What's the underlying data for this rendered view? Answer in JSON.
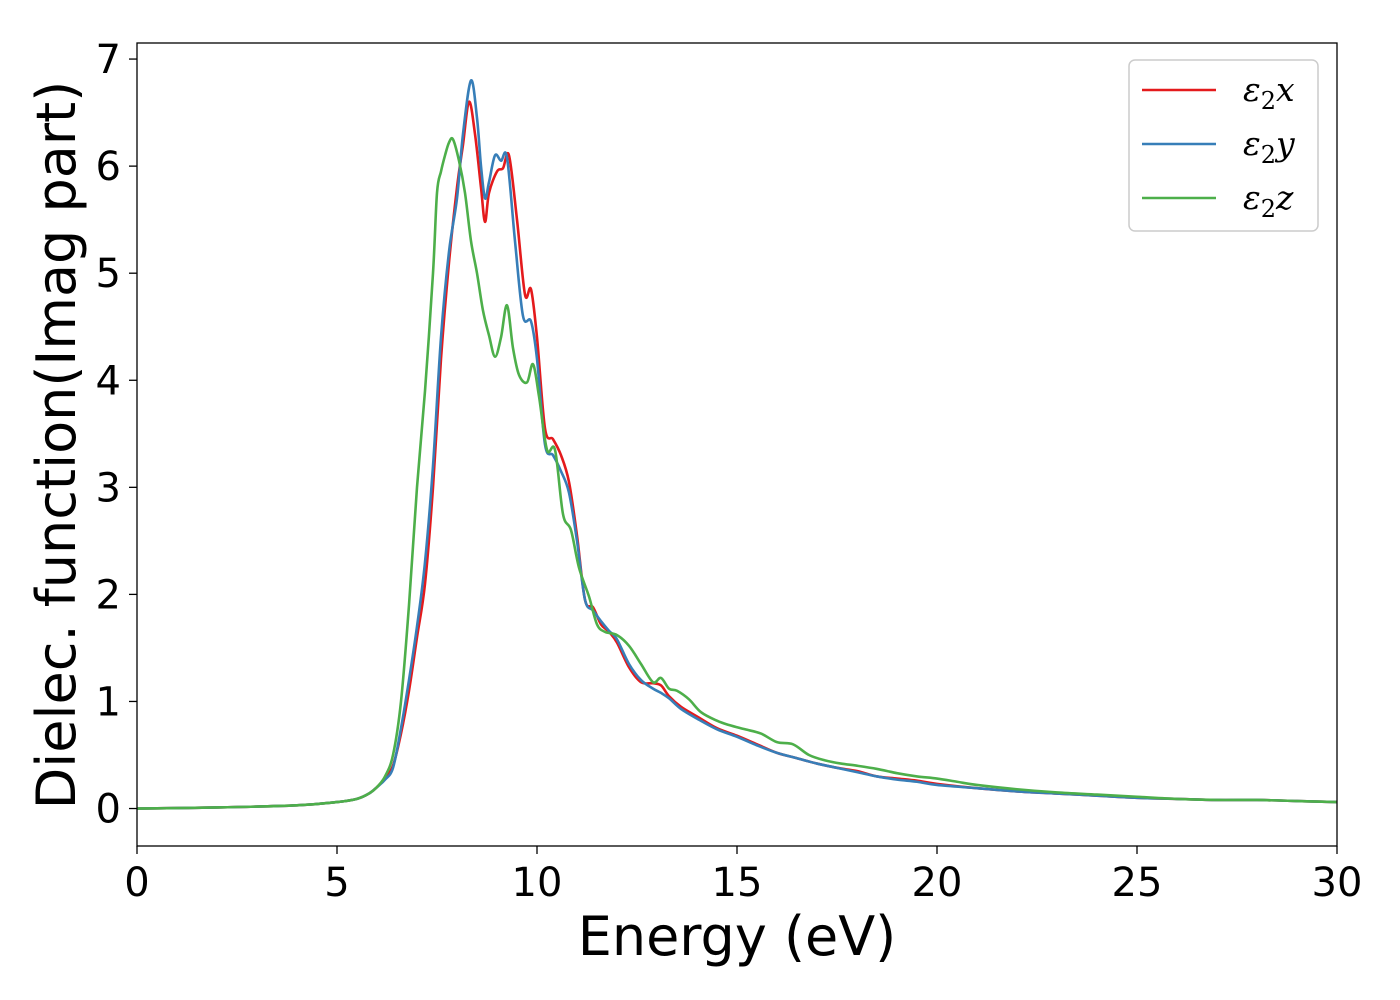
{
  "chart_data": {
    "type": "line",
    "xlabel": "Energy (eV)",
    "ylabel": "Dielec. function(Imag part)",
    "xlim": [
      0,
      30
    ],
    "ylim": [
      -0.35,
      7.15
    ],
    "xticks": [
      0,
      5,
      10,
      15,
      20,
      25,
      30
    ],
    "yticks": [
      0,
      1,
      2,
      3,
      4,
      5,
      6,
      7
    ],
    "grid": false,
    "legend": "top-right",
    "series": [
      {
        "name": "ε",
        "sub": "2",
        "suffix": "x",
        "color": "#e41a1c",
        "x": [
          0,
          2,
          4,
          5,
          5.5,
          5.8,
          6.0,
          6.2,
          6.4,
          6.6,
          6.8,
          7.0,
          7.2,
          7.4,
          7.6,
          7.8,
          8.0,
          8.15,
          8.3,
          8.45,
          8.6,
          8.7,
          8.8,
          9.0,
          9.15,
          9.3,
          9.5,
          9.7,
          9.85,
          10.0,
          10.2,
          10.4,
          10.6,
          10.8,
          11.0,
          11.2,
          11.4,
          11.6,
          11.8,
          12.0,
          12.3,
          12.6,
          12.9,
          13.1,
          13.3,
          13.6,
          14.0,
          14.5,
          15.0,
          15.5,
          16.0,
          16.5,
          17.0,
          17.5,
          18.0,
          18.5,
          19.0,
          19.5,
          20.0,
          21,
          22,
          23,
          24,
          25,
          26,
          27,
          28,
          29,
          30
        ],
        "y": [
          0.0,
          0.01,
          0.03,
          0.06,
          0.09,
          0.14,
          0.2,
          0.28,
          0.4,
          0.7,
          1.1,
          1.6,
          2.1,
          3.0,
          4.2,
          5.1,
          5.8,
          6.2,
          6.6,
          6.3,
          5.8,
          5.48,
          5.75,
          5.95,
          5.98,
          6.1,
          5.5,
          4.8,
          4.85,
          4.4,
          3.55,
          3.45,
          3.3,
          3.05,
          2.55,
          1.95,
          1.88,
          1.72,
          1.65,
          1.55,
          1.32,
          1.18,
          1.17,
          1.15,
          1.05,
          0.95,
          0.86,
          0.75,
          0.68,
          0.6,
          0.52,
          0.47,
          0.42,
          0.38,
          0.35,
          0.3,
          0.28,
          0.26,
          0.23,
          0.19,
          0.16,
          0.14,
          0.12,
          0.1,
          0.09,
          0.08,
          0.08,
          0.07,
          0.06
        ]
      },
      {
        "name": "ε",
        "sub": "2",
        "suffix": "y",
        "color": "#377eb8",
        "x": [
          0,
          2,
          4,
          5,
          5.5,
          5.8,
          6.0,
          6.2,
          6.4,
          6.6,
          6.8,
          7.0,
          7.2,
          7.4,
          7.6,
          7.8,
          8.0,
          8.15,
          8.35,
          8.5,
          8.6,
          8.7,
          8.8,
          8.95,
          9.1,
          9.25,
          9.45,
          9.65,
          9.85,
          10.0,
          10.2,
          10.4,
          10.6,
          10.8,
          11.0,
          11.2,
          11.4,
          11.6,
          11.8,
          12.0,
          12.3,
          12.6,
          12.9,
          13.1,
          13.3,
          13.6,
          14.0,
          14.5,
          15.0,
          15.5,
          16.0,
          16.5,
          17.0,
          17.5,
          18.0,
          18.5,
          19.0,
          19.5,
          20.0,
          21,
          22,
          23,
          24,
          25,
          26,
          27,
          28,
          29,
          30
        ],
        "y": [
          0.0,
          0.01,
          0.03,
          0.06,
          0.09,
          0.14,
          0.2,
          0.27,
          0.38,
          0.75,
          1.2,
          1.7,
          2.3,
          3.2,
          4.4,
          5.2,
          5.7,
          6.3,
          6.8,
          6.45,
          6.0,
          5.7,
          5.85,
          6.1,
          6.05,
          6.08,
          5.3,
          4.6,
          4.55,
          4.2,
          3.4,
          3.3,
          3.15,
          2.95,
          2.5,
          1.95,
          1.85,
          1.75,
          1.66,
          1.58,
          1.35,
          1.2,
          1.12,
          1.08,
          1.03,
          0.93,
          0.84,
          0.74,
          0.67,
          0.59,
          0.52,
          0.47,
          0.42,
          0.38,
          0.34,
          0.3,
          0.27,
          0.25,
          0.22,
          0.19,
          0.16,
          0.14,
          0.12,
          0.1,
          0.09,
          0.08,
          0.08,
          0.07,
          0.06
        ]
      },
      {
        "name": "ε",
        "sub": "2",
        "suffix": "z",
        "color": "#4daf4a",
        "x": [
          0,
          2,
          4,
          5,
          5.5,
          5.8,
          6.0,
          6.2,
          6.4,
          6.6,
          6.8,
          7.0,
          7.2,
          7.4,
          7.5,
          7.6,
          7.7,
          7.8,
          7.9,
          8.05,
          8.2,
          8.35,
          8.5,
          8.65,
          8.8,
          8.95,
          9.1,
          9.25,
          9.4,
          9.55,
          9.75,
          9.9,
          10.05,
          10.25,
          10.45,
          10.65,
          10.85,
          11.05,
          11.3,
          11.5,
          11.7,
          12.0,
          12.3,
          12.6,
          12.9,
          13.1,
          13.3,
          13.5,
          13.8,
          14.1,
          14.5,
          14.8,
          15.2,
          15.6,
          16.0,
          16.4,
          16.8,
          17.2,
          17.6,
          18.0,
          18.5,
          19.0,
          19.5,
          20.0,
          20.5,
          21,
          22,
          23,
          24,
          25,
          26,
          27,
          28,
          29,
          30
        ],
        "y": [
          0.0,
          0.01,
          0.03,
          0.06,
          0.09,
          0.14,
          0.2,
          0.3,
          0.5,
          1.0,
          1.9,
          3.0,
          3.9,
          5.0,
          5.75,
          5.95,
          6.1,
          6.22,
          6.25,
          6.05,
          5.75,
          5.3,
          5.0,
          4.65,
          4.42,
          4.22,
          4.4,
          4.7,
          4.3,
          4.05,
          3.98,
          4.15,
          3.85,
          3.35,
          3.35,
          2.75,
          2.6,
          2.25,
          1.98,
          1.72,
          1.65,
          1.62,
          1.52,
          1.35,
          1.18,
          1.22,
          1.12,
          1.1,
          1.02,
          0.9,
          0.82,
          0.78,
          0.74,
          0.7,
          0.62,
          0.6,
          0.5,
          0.45,
          0.42,
          0.4,
          0.37,
          0.33,
          0.3,
          0.28,
          0.25,
          0.22,
          0.18,
          0.15,
          0.13,
          0.11,
          0.09,
          0.08,
          0.08,
          0.07,
          0.06
        ]
      }
    ]
  }
}
